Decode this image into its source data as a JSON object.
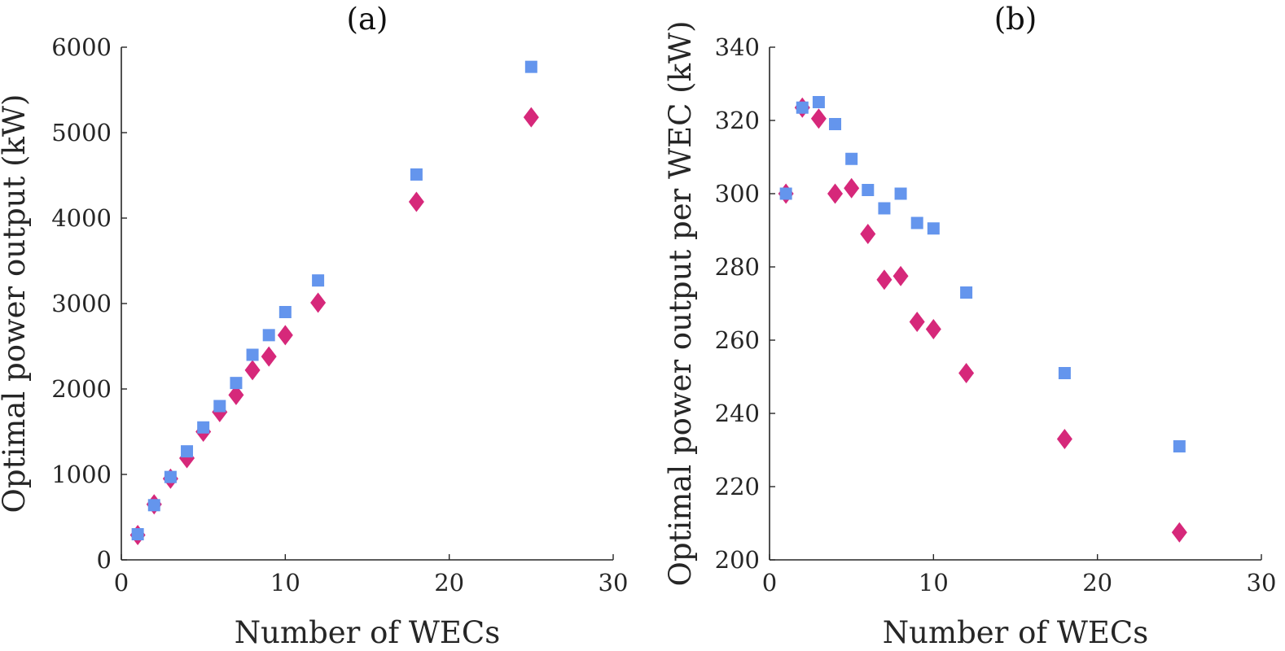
{
  "chart_data": [
    {
      "type": "scatter",
      "title": "(a)",
      "xlabel": "Number of WECs",
      "ylabel": "Optimal power output (kW)",
      "xlim": [
        0,
        30
      ],
      "ylim": [
        0,
        6000
      ],
      "xticks": [
        0,
        10,
        20,
        30
      ],
      "yticks": [
        0,
        1000,
        2000,
        3000,
        4000,
        5000,
        6000
      ],
      "series": [
        {
          "name": "diamond-series",
          "marker": "diamond",
          "color": "#d6287a",
          "x": [
            1,
            2,
            3,
            4,
            5,
            6,
            7,
            8,
            9,
            10,
            12,
            18,
            25
          ],
          "y": [
            290,
            650,
            950,
            1190,
            1500,
            1730,
            1930,
            2220,
            2380,
            2630,
            3010,
            4190,
            5180
          ]
        },
        {
          "name": "square-series",
          "marker": "square",
          "color": "#6495ed",
          "x": [
            1,
            2,
            3,
            4,
            5,
            6,
            7,
            8,
            9,
            10,
            12,
            18,
            25
          ],
          "y": [
            300,
            640,
            970,
            1270,
            1550,
            1800,
            2070,
            2400,
            2630,
            2900,
            3270,
            4510,
            5770
          ]
        }
      ]
    },
    {
      "type": "scatter",
      "title": "(b)",
      "xlabel": "Number of WECs",
      "ylabel": "Optimal power output per WEC (kW)",
      "xlim": [
        0,
        30
      ],
      "ylim": [
        200,
        340
      ],
      "xticks": [
        0,
        10,
        20,
        30
      ],
      "yticks": [
        200,
        220,
        240,
        260,
        280,
        300,
        320,
        340
      ],
      "series": [
        {
          "name": "diamond-series",
          "marker": "diamond",
          "color": "#d6287a",
          "x": [
            1,
            2,
            3,
            4,
            5,
            6,
            7,
            8,
            9,
            10,
            12,
            18,
            25
          ],
          "y": [
            300,
            323.5,
            320.5,
            300,
            301.5,
            289,
            276.5,
            277.5,
            265,
            263,
            251,
            233,
            207.5
          ]
        },
        {
          "name": "square-series",
          "marker": "square",
          "color": "#6495ed",
          "x": [
            1,
            2,
            3,
            4,
            5,
            6,
            7,
            8,
            9,
            10,
            12,
            18,
            25
          ],
          "y": [
            300,
            323.5,
            325,
            319,
            309.5,
            301,
            296,
            300,
            292,
            290.5,
            273,
            251,
            231
          ]
        }
      ]
    }
  ]
}
